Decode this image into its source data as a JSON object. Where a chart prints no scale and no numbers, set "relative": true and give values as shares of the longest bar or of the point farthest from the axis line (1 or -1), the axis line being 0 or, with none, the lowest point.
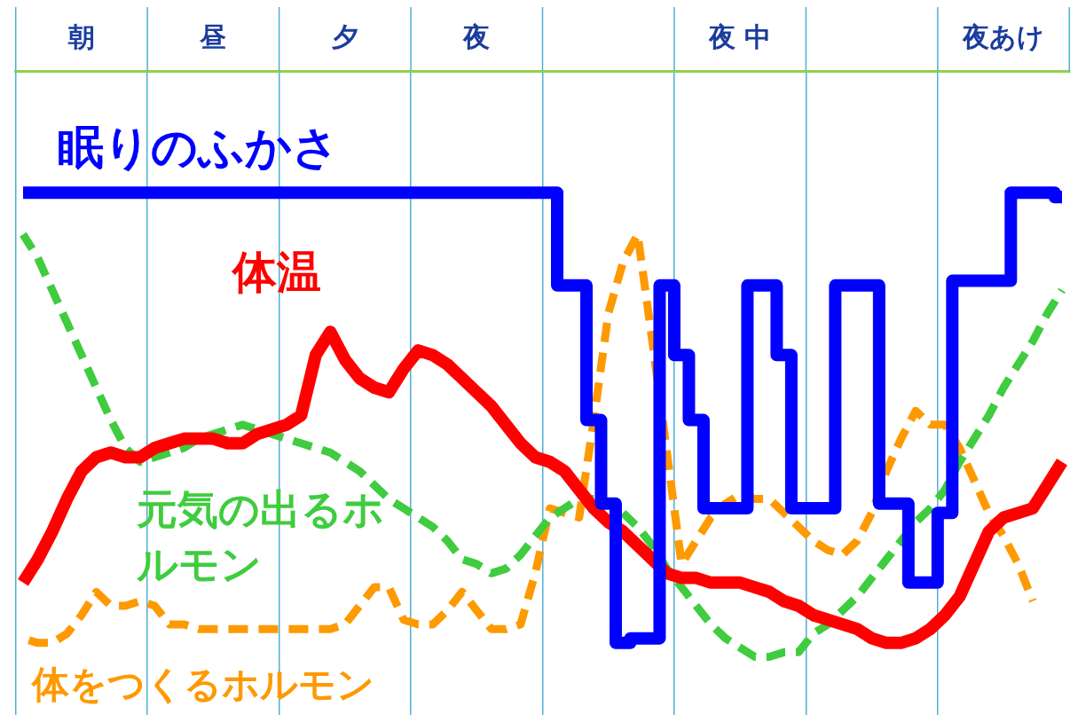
{
  "chart_data": {
    "type": "line",
    "relative": true,
    "categories": [
      null,
      null,
      null,
      null,
      "朝",
      null,
      null,
      null,
      null,
      null,
      null,
      null,
      null,
      "昼",
      null,
      null,
      null,
      null,
      null,
      null,
      null,
      null,
      "夕",
      null,
      null,
      null,
      null,
      null,
      null,
      null,
      null,
      "夜",
      null,
      null,
      null,
      null,
      null,
      null,
      null,
      null,
      null,
      null,
      null,
      null,
      null,
      null,
      null,
      null,
      null,
      "夜 中",
      null,
      null,
      null,
      null,
      null,
      null,
      null,
      null,
      null,
      null,
      null,
      null,
      null,
      null,
      null,
      null,
      null,
      "夜あけ",
      null,
      null,
      null,
      null
    ],
    "grid": "x",
    "marker": "none",
    "series": [
      {
        "name": "眠りのふかさ",
        "type": "step",
        "color": "#0000ff",
        "line_style": "solid",
        "values": [
          1.0,
          1.0,
          1.0,
          1.0,
          1.0,
          1.0,
          1.0,
          1.0,
          1.0,
          1.0,
          1.0,
          1.0,
          1.0,
          1.0,
          1.0,
          1.0,
          1.0,
          1.0,
          1.0,
          1.0,
          1.0,
          1.0,
          1.0,
          1.0,
          1.0,
          1.0,
          1.0,
          1.0,
          1.0,
          1.0,
          1.0,
          1.0,
          1.0,
          1.0,
          1.0,
          1.0,
          1.0,
          0.8,
          0.8,
          0.51,
          0.33,
          0.03,
          0.04,
          0.04,
          0.8,
          0.65,
          0.51,
          0.32,
          0.32,
          0.32,
          0.8,
          0.8,
          0.65,
          0.32,
          0.32,
          0.32,
          0.8,
          0.8,
          0.8,
          0.33,
          0.33,
          0.16,
          0.16,
          0.31,
          0.81,
          0.81,
          0.81,
          0.81,
          1.0,
          1.0,
          1.0,
          0.99
        ]
      },
      {
        "name": "体温",
        "color": "#ff0000",
        "line_style": "solid",
        "values": [
          0.16,
          0.21,
          0.27,
          0.34,
          0.4,
          0.43,
          0.44,
          0.43,
          0.43,
          0.45,
          0.46,
          0.47,
          0.47,
          0.47,
          0.46,
          0.46,
          0.48,
          0.49,
          0.5,
          0.52,
          0.65,
          0.7,
          0.64,
          0.6,
          0.58,
          0.57,
          0.62,
          0.66,
          0.65,
          0.63,
          0.6,
          0.57,
          0.54,
          0.5,
          0.46,
          0.43,
          0.42,
          0.4,
          0.36,
          0.32,
          0.29,
          0.27,
          0.24,
          0.21,
          0.18,
          0.17,
          0.17,
          0.16,
          0.16,
          0.16,
          0.15,
          0.14,
          0.12,
          0.11,
          0.09,
          0.08,
          0.07,
          0.06,
          0.04,
          0.03,
          0.03,
          0.04,
          0.06,
          0.09,
          0.13,
          0.2,
          0.27,
          0.3,
          0.31,
          0.32,
          0.37,
          0.42
        ]
      },
      {
        "name": "元気の出るホルモン",
        "color": "#3fcc3f",
        "line_style": "dashed",
        "values": [
          0.91,
          0.86,
          0.79,
          0.72,
          0.65,
          0.58,
          0.51,
          0.45,
          0.42,
          0.43,
          0.44,
          0.45,
          0.47,
          0.48,
          0.49,
          0.5,
          0.49,
          0.48,
          0.47,
          0.46,
          0.45,
          0.44,
          0.42,
          0.4,
          0.37,
          0.34,
          0.32,
          0.3,
          0.28,
          0.25,
          0.21,
          0.2,
          0.18,
          0.19,
          0.22,
          0.26,
          0.3,
          0.32,
          0.34,
          0.34,
          null,
          0.31,
          0.28,
          0.24,
          0.19,
          0.15,
          0.11,
          0.07,
          0.04,
          0.02,
          0.0,
          0.0,
          0.01,
          0.01,
          0.05,
          0.07,
          0.1,
          0.13,
          0.17,
          0.21,
          0.25,
          0.29,
          0.32,
          0.36,
          0.42,
          0.47,
          0.52,
          0.58,
          0.63,
          0.68,
          0.74,
          0.79
        ]
      },
      {
        "name": "体をつくるホルモン",
        "color": "#ff9900",
        "line_style": "dashed",
        "values": [
          0.04,
          0.03,
          0.03,
          0.05,
          0.09,
          0.14,
          0.11,
          0.11,
          0.12,
          0.11,
          0.07,
          0.07,
          0.06,
          0.06,
          0.06,
          0.06,
          0.06,
          0.06,
          0.06,
          0.06,
          0.06,
          0.06,
          0.07,
          0.11,
          0.15,
          0.15,
          0.08,
          0.07,
          0.07,
          0.1,
          0.14,
          0.1,
          0.06,
          0.06,
          0.07,
          0.18,
          0.32,
          0.31,
          0.3,
          0.51,
          0.74,
          0.85,
          0.91,
          0.68,
          0.44,
          0.2,
          0.25,
          0.3,
          0.33,
          0.35,
          0.34,
          0.34,
          0.31,
          0.28,
          0.25,
          0.23,
          0.22,
          0.25,
          0.31,
          0.4,
          0.47,
          0.53,
          0.5,
          0.5,
          0.45,
          0.38,
          0.31,
          0.26,
          0.2,
          0.12,
          null,
          null
        ]
      }
    ]
  }
}
